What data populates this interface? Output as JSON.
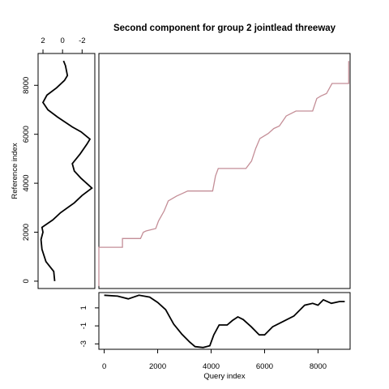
{
  "chart_data": {
    "type": "line",
    "title": "Second component for group 2 jointlead threeway",
    "xlabel": "Query index",
    "ylabel": "Reference index",
    "colors": {
      "warp": "#c48e97",
      "series": "#000000"
    },
    "main": {
      "xlim": [
        0,
        9050
      ],
      "ylim": [
        -100,
        9300
      ],
      "warp_path": [
        [
          0,
          0
        ],
        [
          0,
          1550
        ],
        [
          850,
          1550
        ],
        [
          850,
          1900
        ],
        [
          1500,
          1900
        ],
        [
          1600,
          2150
        ],
        [
          1700,
          2200
        ],
        [
          2050,
          2300
        ],
        [
          2150,
          2600
        ],
        [
          2350,
          3000
        ],
        [
          2500,
          3400
        ],
        [
          2800,
          3600
        ],
        [
          3000,
          3700
        ],
        [
          3200,
          3800
        ],
        [
          4100,
          3800
        ],
        [
          4200,
          4400
        ],
        [
          4300,
          4700
        ],
        [
          5300,
          4700
        ],
        [
          5500,
          5000
        ],
        [
          5650,
          5500
        ],
        [
          5800,
          5900
        ],
        [
          6100,
          6100
        ],
        [
          6300,
          6300
        ],
        [
          6500,
          6400
        ],
        [
          6750,
          6800
        ],
        [
          7100,
          7000
        ],
        [
          7700,
          7000
        ],
        [
          7850,
          7500
        ],
        [
          8000,
          7600
        ],
        [
          8200,
          7700
        ],
        [
          8400,
          8100
        ],
        [
          9000,
          8100
        ],
        [
          9000,
          9000
        ]
      ]
    },
    "query_series": {
      "xlim": [
        -200,
        9200
      ],
      "ylim": [
        -3.6,
        2.7
      ],
      "yticks": [
        "-3",
        "-1",
        "1"
      ],
      "xticks": [
        "0",
        "2000",
        "4000",
        "6000",
        "8000"
      ],
      "points": [
        [
          0,
          2.4
        ],
        [
          500,
          2.3
        ],
        [
          900,
          2.0
        ],
        [
          1300,
          2.4
        ],
        [
          1700,
          2.2
        ],
        [
          2000,
          1.6
        ],
        [
          2300,
          0.8
        ],
        [
          2600,
          -0.8
        ],
        [
          2900,
          -1.9
        ],
        [
          3200,
          -2.8
        ],
        [
          3400,
          -3.3
        ],
        [
          3700,
          -3.4
        ],
        [
          3950,
          -3.2
        ],
        [
          4100,
          -2.0
        ],
        [
          4300,
          -0.9
        ],
        [
          4600,
          -0.9
        ],
        [
          4800,
          -0.4
        ],
        [
          5000,
          0.0
        ],
        [
          5200,
          -0.3
        ],
        [
          5500,
          -1.1
        ],
        [
          5800,
          -2.0
        ],
        [
          6000,
          -2.0
        ],
        [
          6300,
          -1.1
        ],
        [
          6700,
          -0.5
        ],
        [
          7100,
          0.1
        ],
        [
          7500,
          1.3
        ],
        [
          7800,
          1.5
        ],
        [
          8000,
          1.3
        ],
        [
          8200,
          1.9
        ],
        [
          8500,
          1.5
        ],
        [
          8800,
          1.7
        ],
        [
          9000,
          1.7
        ]
      ]
    },
    "reference_series": {
      "xlim": [
        2.5,
        -3.3
      ],
      "ylim": [
        -300,
        9300
      ],
      "xticks": [
        "2",
        "0",
        "-2"
      ],
      "yticks": [
        "0",
        "2000",
        "4000",
        "6000",
        "8000"
      ],
      "points": [
        [
          0.8,
          0
        ],
        [
          0.9,
          400
        ],
        [
          1.7,
          800
        ],
        [
          2.1,
          1300
        ],
        [
          2.2,
          1700
        ],
        [
          2.0,
          2000
        ],
        [
          2.1,
          2200
        ],
        [
          1.0,
          2500
        ],
        [
          0.2,
          2800
        ],
        [
          -1.2,
          3200
        ],
        [
          -2.0,
          3500
        ],
        [
          -3.0,
          3800
        ],
        [
          -1.9,
          4200
        ],
        [
          -1.2,
          4500
        ],
        [
          -1.0,
          4800
        ],
        [
          -1.8,
          5200
        ],
        [
          -2.5,
          5600
        ],
        [
          -2.8,
          5800
        ],
        [
          -1.9,
          6100
        ],
        [
          -1.0,
          6300
        ],
        [
          0.5,
          6700
        ],
        [
          1.5,
          7000
        ],
        [
          2.0,
          7300
        ],
        [
          1.6,
          7600
        ],
        [
          0.6,
          7900
        ],
        [
          -0.2,
          8200
        ],
        [
          -0.5,
          8400
        ],
        [
          -0.3,
          8800
        ],
        [
          -0.1,
          9000
        ]
      ]
    }
  }
}
